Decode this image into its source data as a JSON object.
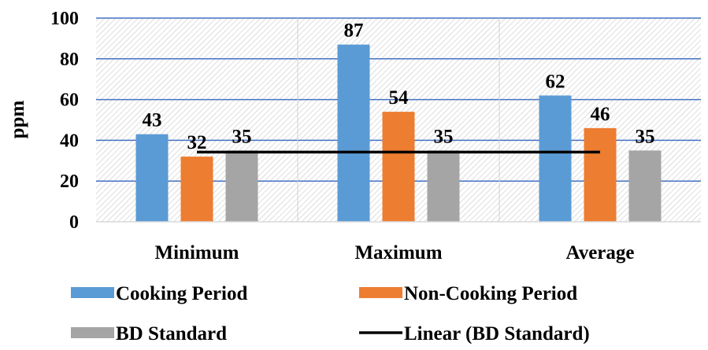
{
  "chart_data": {
    "type": "bar",
    "title": "",
    "xlabel": "",
    "ylabel": "ppm",
    "ylim": [
      0,
      100
    ],
    "yticks": [
      0,
      20,
      40,
      60,
      80,
      100
    ],
    "grid": true,
    "legend_position": "bottom",
    "categories": [
      "Minimum",
      "Maximum",
      "Average"
    ],
    "series": [
      {
        "name": "Cooking Period",
        "values": [
          43,
          87,
          62
        ],
        "color": "#5B9BD5"
      },
      {
        "name": "Non-Cooking Period",
        "values": [
          32,
          54,
          46
        ],
        "color": "#ED7D31"
      },
      {
        "name": "BD Standard",
        "values": [
          35,
          35,
          35
        ],
        "color": "#A5A5A5"
      }
    ],
    "trendline": {
      "name": "Linear (BD Standard)",
      "value": 35,
      "color": "#000000"
    },
    "gridline_color": "#4472C4",
    "plot_background": "hatched-light-gray"
  }
}
